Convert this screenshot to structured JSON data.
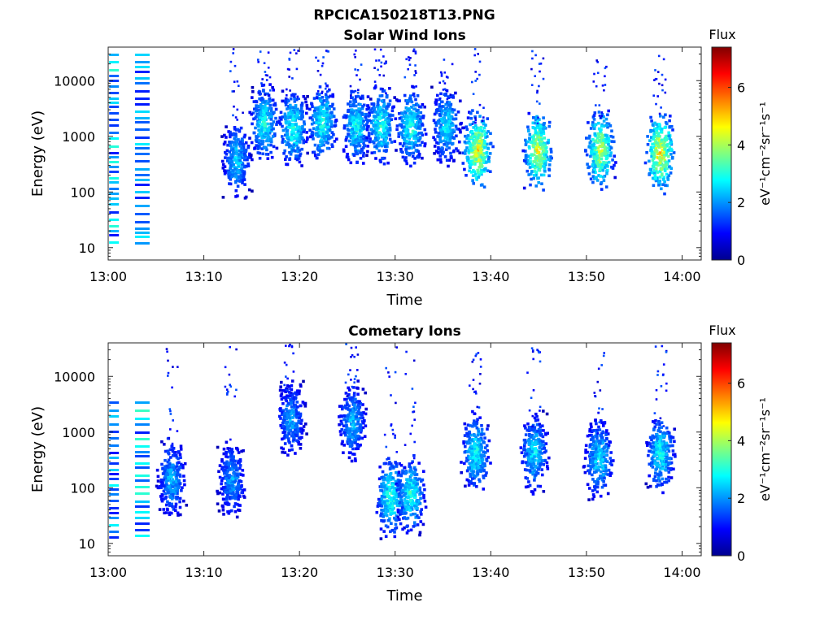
{
  "figure_title": "RPCICA150218T13.PNG",
  "chart_data": [
    {
      "type": "heatmap",
      "title": "Solar Wind Ions",
      "xlabel": "Time",
      "ylabel": "Energy (eV)",
      "x_range": [
        "13:00",
        "14:02"
      ],
      "x_ticks": [
        "13:00",
        "13:10",
        "13:20",
        "13:30",
        "13:40",
        "13:50",
        "14:00"
      ],
      "y_scale": "log",
      "ylim": [
        6,
        40000
      ],
      "y_ticks": [
        10,
        100,
        1000,
        10000
      ],
      "y_tick_labels": [
        "10",
        "100",
        "1000",
        "10000"
      ],
      "colorbar": {
        "title": "Flux",
        "label": "eV⁻¹cm⁻²sr⁻¹s⁻¹",
        "range": [
          0,
          7.4
        ],
        "ticks": [
          "0",
          "2",
          "4",
          "6"
        ]
      },
      "colormap": "jet",
      "blobs": [
        {
          "t": 13.3,
          "e": 400,
          "flux": 2.8
        },
        {
          "t": 16.2,
          "e": 1800,
          "flux": 3.2
        },
        {
          "t": 19.2,
          "e": 1500,
          "flux": 3.4
        },
        {
          "t": 22.3,
          "e": 1800,
          "flux": 3.4
        },
        {
          "t": 25.8,
          "e": 1600,
          "flux": 3.2
        },
        {
          "t": 28.4,
          "e": 1700,
          "flux": 3.4
        },
        {
          "t": 31.5,
          "e": 1600,
          "flux": 3.4
        },
        {
          "t": 35.2,
          "e": 1700,
          "flux": 3.0
        },
        {
          "t": 38.5,
          "e": 600,
          "flux": 5.0
        },
        {
          "t": 44.8,
          "e": 600,
          "flux": 4.8
        },
        {
          "t": 51.3,
          "e": 600,
          "flux": 4.6
        },
        {
          "t": 57.6,
          "e": 550,
          "flux": 5.2
        }
      ]
    },
    {
      "type": "heatmap",
      "title": "Cometary Ions",
      "xlabel": "Time",
      "ylabel": "Energy (eV)",
      "x_range": [
        "13:00",
        "14:02"
      ],
      "x_ticks": [
        "13:00",
        "13:10",
        "13:20",
        "13:30",
        "13:40",
        "13:50",
        "14:00"
      ],
      "y_scale": "log",
      "ylim": [
        6,
        40000
      ],
      "y_ticks": [
        10,
        100,
        1000,
        10000
      ],
      "y_tick_labels": [
        "10",
        "100",
        "1000",
        "10000"
      ],
      "colorbar": {
        "title": "Flux",
        "label": "eV⁻¹cm⁻²sr⁻¹s⁻¹",
        "range": [
          0,
          7.4
        ],
        "ticks": [
          "0",
          "2",
          "4",
          "6"
        ]
      },
      "colormap": "jet",
      "blobs": [
        {
          "t": 6.5,
          "e": 150,
          "flux": 2.6
        },
        {
          "t": 12.8,
          "e": 150,
          "flux": 2.4
        },
        {
          "t": 19.0,
          "e": 1800,
          "flux": 2.4
        },
        {
          "t": 25.4,
          "e": 1600,
          "flux": 2.6
        },
        {
          "t": 29.4,
          "e": 70,
          "flux": 3.6
        },
        {
          "t": 31.5,
          "e": 80,
          "flux": 3.4
        },
        {
          "t": 38.3,
          "e": 450,
          "flux": 3.2
        },
        {
          "t": 44.4,
          "e": 450,
          "flux": 3.0
        },
        {
          "t": 51.2,
          "e": 350,
          "flux": 3.0
        },
        {
          "t": 57.6,
          "e": 450,
          "flux": 3.2
        }
      ]
    }
  ]
}
